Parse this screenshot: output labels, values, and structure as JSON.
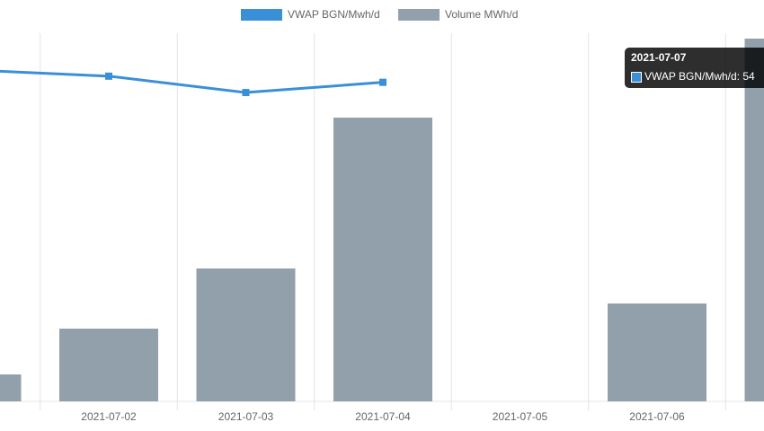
{
  "chart_data": {
    "type": "bar-line",
    "categories": [
      null,
      "2021-07-02",
      "2021-07-03",
      "2021-07-04",
      "2021-07-05",
      "2021-07-06",
      null
    ],
    "series": [
      {
        "name": "VWAP BGN/Mwh/d",
        "color": "#3a8fd9",
        "type": "line",
        "axis": "y2",
        "values": [
          56.2,
          55.9,
          55.1,
          55.6,
          null,
          null,
          null
        ]
      },
      {
        "name": "Volume MWh/d",
        "color": "#92a0ab",
        "type": "bar",
        "values": [
          30,
          81,
          148,
          316,
          null,
          109,
          404
        ]
      }
    ],
    "ylim": [
      0,
      410
    ],
    "y2lim": [
      40,
      58
    ],
    "grid": true,
    "legend": "top",
    "tooltip": {
      "title": "2021-07-07",
      "text": "VWAP BGN/Mwh/d: 54"
    }
  }
}
